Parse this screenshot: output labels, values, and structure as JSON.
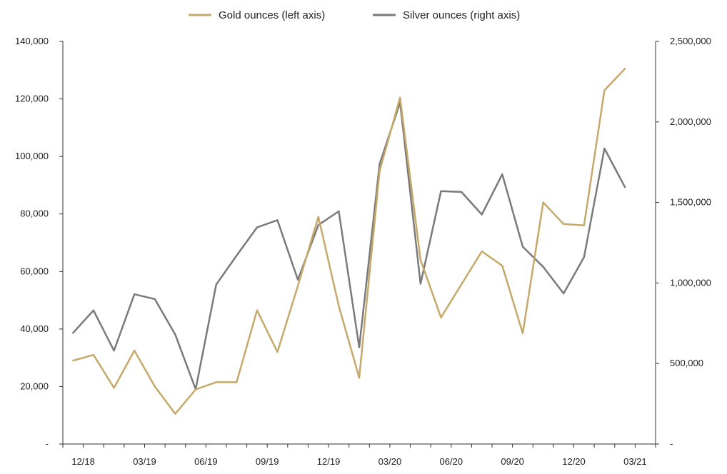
{
  "chart_data": {
    "type": "line",
    "title": "",
    "xlabel": "",
    "ylabel_left": "",
    "ylabel_right": "",
    "legend_position": "top-center",
    "grid": false,
    "x_tick_labels": [
      "12/18",
      "03/19",
      "06/19",
      "09/19",
      "12/19",
      "03/20",
      "06/20",
      "09/20",
      "12/20",
      "03/21"
    ],
    "x": [
      "11/18",
      "12/18",
      "01/19",
      "02/19",
      "03/19",
      "04/19",
      "05/19",
      "06/19",
      "07/19",
      "08/19",
      "09/19",
      "10/19",
      "11/19",
      "12/19",
      "01/20",
      "02/20",
      "03/20",
      "04/20",
      "05/20",
      "06/20",
      "07/20",
      "08/20",
      "09/20",
      "10/20",
      "11/20",
      "12/20",
      "01/21",
      "02/21",
      "03/21"
    ],
    "y_left": {
      "range": [
        0,
        140000
      ],
      "ticks": [
        0,
        20000,
        40000,
        60000,
        80000,
        100000,
        120000,
        140000
      ],
      "tick_labels": [
        "-",
        "20,000",
        "40,000",
        "60,000",
        "80,000",
        "100,000",
        "120,000",
        "140,000"
      ]
    },
    "y_right": {
      "range": [
        0,
        2500000
      ],
      "ticks": [
        0,
        500000,
        1000000,
        1500000,
        2000000,
        2500000
      ],
      "tick_labels": [
        "-",
        "500,000",
        "1,000,000",
        "1,500,000",
        "2,000,000",
        "2,500,000"
      ]
    },
    "series": [
      {
        "name": "Gold ounces (left axis)",
        "axis": "left",
        "color": "#c4a96a",
        "values": [
          29000,
          31000,
          19500,
          32500,
          20000,
          10500,
          19000,
          21500,
          21500,
          46500,
          32000,
          55000,
          79000,
          48000,
          23000,
          95000,
          120500,
          64000,
          44000,
          55500,
          67000,
          62000,
          38500,
          84000,
          76500,
          76000,
          123000,
          130500,
          null
        ]
      },
      {
        "name": "Silver ounces (right axis)",
        "axis": "right",
        "color": "#7a7a7a",
        "values": [
          690000,
          830000,
          580000,
          930000,
          900000,
          680000,
          340000,
          990000,
          1170000,
          1345000,
          1390000,
          1020000,
          1360000,
          1445000,
          600000,
          1740000,
          2120000,
          995000,
          1570000,
          1565000,
          1425000,
          1675000,
          1225000,
          1100000,
          935000,
          1160000,
          1835000,
          1595000,
          null
        ]
      }
    ]
  }
}
